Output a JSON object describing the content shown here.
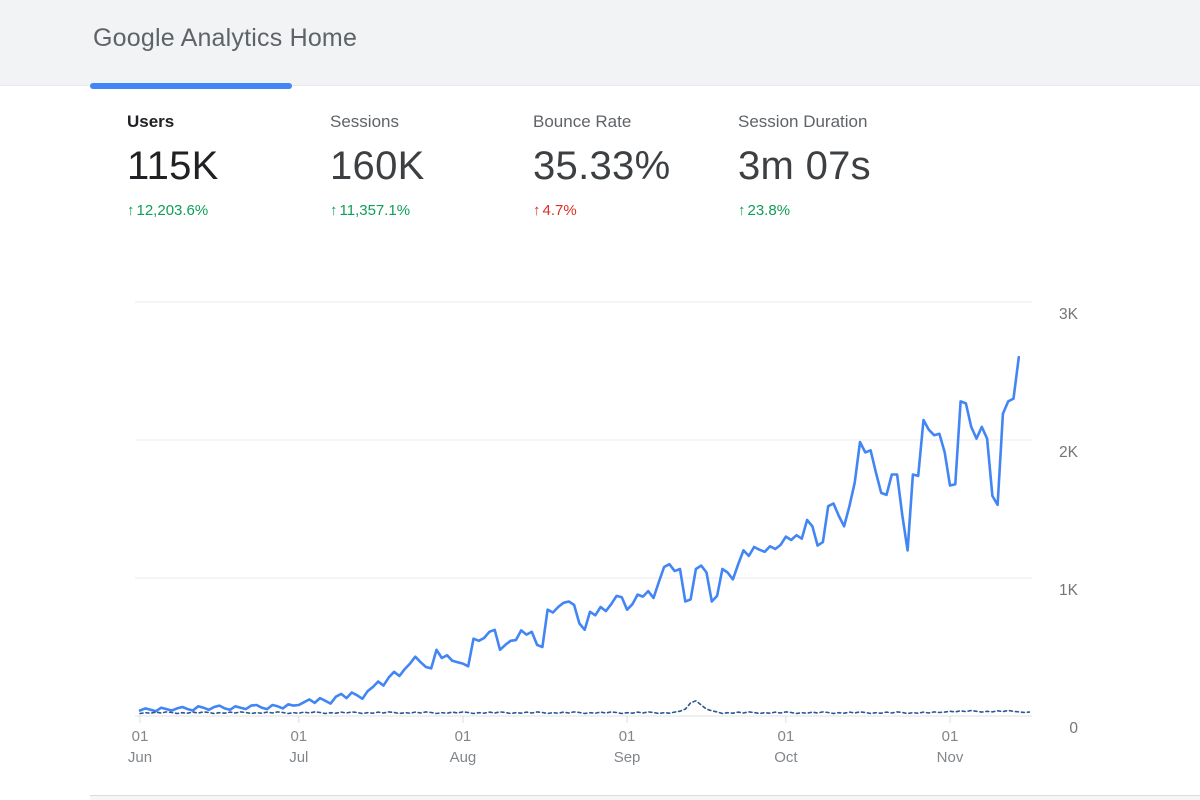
{
  "header": {
    "title": "Google Analytics Home",
    "accent_color": "#4285f4"
  },
  "metrics": [
    {
      "label": "Users",
      "value": "115K",
      "arrow": "↑",
      "delta": "12,203.6%",
      "delta_color": "#0f9d58",
      "active": true
    },
    {
      "label": "Sessions",
      "value": "160K",
      "arrow": "↑",
      "delta": "11,357.1%",
      "delta_color": "#0f9d58",
      "active": false
    },
    {
      "label": "Bounce Rate",
      "value": "35.33%",
      "arrow": "↑",
      "delta": "4.7%",
      "delta_color": "#d93025",
      "active": false
    },
    {
      "label": "Session Duration",
      "value": "3m 07s",
      "arrow": "↑",
      "delta": "23.8%",
      "delta_color": "#0f9d58",
      "active": false
    }
  ],
  "chart_data": {
    "type": "line",
    "x_description": "Daily Users, Jun 1 through mid-Nov; dashed series is previous period near zero",
    "ylim": [
      0,
      3000
    ],
    "y_ticks": [
      {
        "value": 0,
        "label": "0"
      },
      {
        "value": 1000,
        "label": "1K"
      },
      {
        "value": 2000,
        "label": "2K"
      },
      {
        "value": 3000,
        "label": "3K"
      }
    ],
    "x_ticks": [
      {
        "day": 0,
        "line1": "01",
        "line2": "Jun"
      },
      {
        "day": 30,
        "line1": "01",
        "line2": "Jul"
      },
      {
        "day": 61,
        "line1": "01",
        "line2": "Aug"
      },
      {
        "day": 92,
        "line1": "01",
        "line2": "Sep"
      },
      {
        "day": 122,
        "line1": "01",
        "line2": "Oct"
      },
      {
        "day": 153,
        "line1": "01",
        "line2": "Nov"
      }
    ],
    "series": [
      {
        "name": "Users current period",
        "color": "#4285f4",
        "style": "solid",
        "values": [
          40,
          55,
          45,
          35,
          60,
          50,
          40,
          55,
          65,
          50,
          40,
          70,
          60,
          45,
          65,
          75,
          55,
          45,
          70,
          60,
          50,
          75,
          80,
          60,
          50,
          80,
          70,
          55,
          85,
          75,
          80,
          100,
          120,
          95,
          130,
          110,
          90,
          140,
          160,
          130,
          170,
          150,
          125,
          180,
          210,
          250,
          220,
          280,
          320,
          290,
          340,
          380,
          430,
          390,
          355,
          345,
          480,
          420,
          440,
          400,
          390,
          380,
          360,
          560,
          545,
          565,
          610,
          625,
          480,
          515,
          545,
          550,
          620,
          590,
          610,
          515,
          500,
          770,
          750,
          790,
          820,
          830,
          805,
          670,
          625,
          755,
          730,
          790,
          760,
          810,
          870,
          860,
          770,
          810,
          880,
          865,
          905,
          855,
          970,
          1080,
          1100,
          1050,
          1065,
          830,
          845,
          1065,
          1090,
          1040,
          830,
          870,
          1065,
          1040,
          990,
          1100,
          1200,
          1160,
          1225,
          1205,
          1190,
          1230,
          1210,
          1240,
          1300,
          1275,
          1310,
          1285,
          1420,
          1375,
          1235,
          1260,
          1520,
          1540,
          1450,
          1375,
          1520,
          1690,
          1985,
          1910,
          1925,
          1765,
          1617,
          1602,
          1750,
          1750,
          1450,
          1200,
          1750,
          1740,
          2145,
          2075,
          2035,
          2045,
          1910,
          1670,
          1680,
          2280,
          2265,
          2095,
          2010,
          2095,
          2010,
          1595,
          1530,
          2190,
          2280,
          2300,
          2600
        ]
      },
      {
        "name": "Users previous period",
        "color": "#2b5890",
        "style": "dashed",
        "values": [
          18,
          24,
          20,
          28,
          22,
          30,
          25,
          18,
          24,
          20,
          28,
          22,
          30,
          25,
          18,
          24,
          20,
          28,
          22,
          30,
          25,
          18,
          24,
          20,
          28,
          22,
          30,
          25,
          18,
          24,
          20,
          28,
          22,
          30,
          25,
          18,
          24,
          20,
          28,
          22,
          30,
          25,
          18,
          24,
          20,
          28,
          22,
          30,
          25,
          18,
          24,
          20,
          28,
          22,
          30,
          25,
          18,
          24,
          20,
          28,
          22,
          30,
          25,
          18,
          24,
          20,
          28,
          22,
          30,
          25,
          18,
          24,
          20,
          28,
          22,
          30,
          25,
          18,
          24,
          20,
          28,
          22,
          30,
          25,
          18,
          24,
          20,
          28,
          22,
          30,
          25,
          18,
          24,
          20,
          28,
          22,
          30,
          25,
          18,
          24,
          20,
          28,
          35,
          50,
          95,
          110,
          80,
          50,
          38,
          30,
          18,
          24,
          20,
          28,
          22,
          30,
          25,
          18,
          24,
          20,
          28,
          22,
          30,
          25,
          18,
          24,
          20,
          28,
          22,
          30,
          25,
          18,
          24,
          20,
          28,
          22,
          30,
          25,
          18,
          24,
          20,
          28,
          22,
          30,
          25,
          18,
          24,
          20,
          28,
          22,
          30,
          25,
          28,
          34,
          30,
          38,
          32,
          40,
          34,
          28,
          34,
          30,
          38,
          32,
          40,
          34,
          30,
          26,
          28
        ]
      }
    ]
  }
}
